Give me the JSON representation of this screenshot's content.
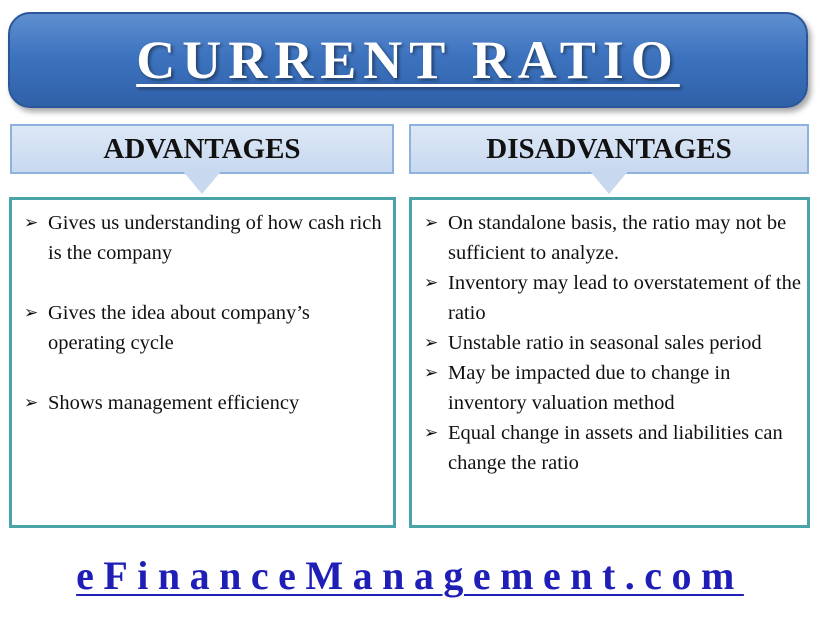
{
  "title": "CURRENT RATIO",
  "advantages": {
    "header": "ADVANTAGES",
    "items": [
      "Gives us understanding of  how cash rich is the company",
      "Gives the idea about company’s operating cycle",
      "Shows management  efficiency"
    ]
  },
  "disadvantages": {
    "header": "DISADVANTAGES",
    "items": [
      "On standalone basis, the ratio may not be sufficient to analyze.",
      "Inventory may lead to overstatement of the ratio",
      "Unstable ratio in seasonal sales period",
      "May be impacted due to change in inventory valuation method",
      "Equal change in assets and liabilities can change the ratio"
    ]
  },
  "footer": {
    "link_text": "eFinanceManagement.com"
  },
  "bullet_glyph": "➢",
  "colors": {
    "banner": "#3d73bf",
    "header_fill": "#c7d8ef",
    "panel_border": "#4aa3a8",
    "link": "#1f1fb8"
  }
}
